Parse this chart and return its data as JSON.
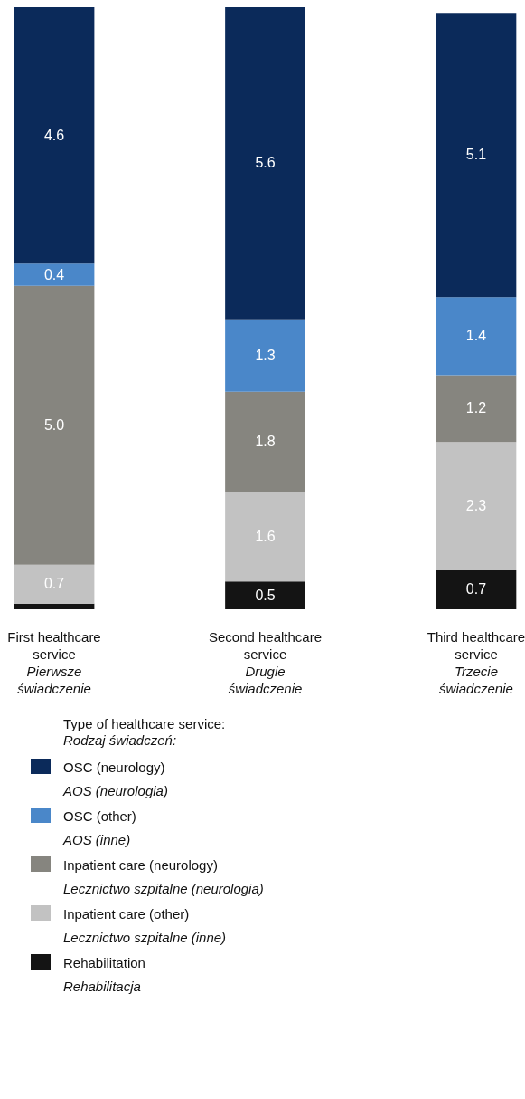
{
  "chart_data": {
    "type": "bar",
    "stacked": true,
    "legend": "bottom",
    "legend_title": "Type of healthcare service:\nRodzaj świadczeń:",
    "categories": [
      "First healthcare service\nPierwsze świadczenie",
      "Second healthcare service\nDrugie świadczenie",
      "Third healthcare service\nTrzecie świadczenie"
    ],
    "series": [
      {
        "name": "Rehabilitation\nRehabilitacja",
        "color": "#141414",
        "values": [
          0.1,
          0.5,
          0.7
        ],
        "value_labels": [
          null,
          "0.5",
          "0.7"
        ]
      },
      {
        "name": "Inpatient care (other)\nLecznictwo szpitalne (inne)",
        "color": "#c2c2c2",
        "values": [
          0.7,
          1.6,
          2.3
        ],
        "value_labels": [
          "0.7",
          "1.6",
          "2.3"
        ]
      },
      {
        "name": "Inpatient care (neurology)\nLecznictwo szpitalne (neurologia)",
        "color": "#86857f",
        "values": [
          5.0,
          1.8,
          1.2
        ],
        "value_labels": [
          "5.0",
          "1.8",
          "1.2"
        ]
      },
      {
        "name": "OSC (other)\nAOS (inne)",
        "color": "#4a87c9",
        "values": [
          0.4,
          1.3,
          1.4
        ],
        "value_labels": [
          "0.4",
          "1.3",
          "1.4"
        ]
      },
      {
        "name": "OSC (neurology)\nAOS (neurologia)",
        "color": "#0b2a5a",
        "values": [
          4.6,
          5.6,
          5.1
        ],
        "value_labels": [
          "4.6",
          "5.6",
          "5.1"
        ]
      }
    ]
  }
}
